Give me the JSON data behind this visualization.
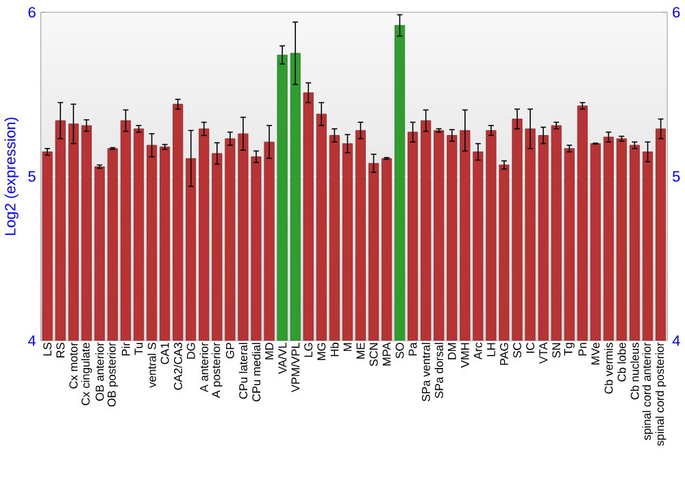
{
  "chart_data": {
    "type": "bar",
    "ylabel": "Log2 (expression)",
    "categories": [
      "LS",
      "RS",
      "Cx motor",
      "Cx cingulate",
      "OB anterior",
      "OB posterior",
      "Pir",
      "Tu",
      "ventral S",
      "CA1",
      "CA2/CA3",
      "DG",
      "A anterior",
      "A posterior",
      "GP",
      "CPu lateral",
      "CPu medial",
      "MD",
      "VA/VL",
      "VPM/VPL",
      "LG",
      "MG",
      "Hb",
      "M",
      "ME",
      "SCN",
      "MPA",
      "SO",
      "Pa",
      "SPa ventral",
      "SPa dorsal",
      "DM",
      "VMH",
      "Arc",
      "LH",
      "PAG",
      "SC",
      "IC",
      "VTA",
      "SN",
      "Tg",
      "Pn",
      "MVe",
      "Cb vermis",
      "Cb lobe",
      "Cb nucleus",
      "spinal cord anterior",
      "spinal cord posterior"
    ],
    "values": [
      5.15,
      5.34,
      5.32,
      5.31,
      5.06,
      5.17,
      5.34,
      5.29,
      5.19,
      5.18,
      5.44,
      5.11,
      5.29,
      5.14,
      5.23,
      5.26,
      5.12,
      5.21,
      5.74,
      5.75,
      5.51,
      5.38,
      5.25,
      5.2,
      5.28,
      5.08,
      5.11,
      5.92,
      5.27,
      5.34,
      5.28,
      5.25,
      5.28,
      5.15,
      5.28,
      5.07,
      5.35,
      5.29,
      5.25,
      5.31,
      5.17,
      5.43,
      5.2,
      5.24,
      5.23,
      5.19,
      5.15,
      5.29
    ],
    "errors": [
      0.02,
      0.11,
      0.12,
      0.035,
      0.01,
      0.005,
      0.065,
      0.02,
      0.07,
      0.015,
      0.03,
      0.17,
      0.04,
      0.065,
      0.04,
      0.1,
      0.035,
      0.1,
      0.055,
      0.19,
      0.06,
      0.07,
      0.04,
      0.055,
      0.05,
      0.055,
      0.005,
      0.065,
      0.06,
      0.065,
      0.01,
      0.035,
      0.125,
      0.05,
      0.03,
      0.025,
      0.06,
      0.12,
      0.05,
      0.02,
      0.02,
      0.02,
      0.003,
      0.03,
      0.015,
      0.02,
      0.06,
      0.06
    ],
    "colors": [
      "#b83434",
      "#b83434",
      "#b83434",
      "#b83434",
      "#b83434",
      "#b83434",
      "#b83434",
      "#b83434",
      "#b83434",
      "#b83434",
      "#b83434",
      "#b83434",
      "#b83434",
      "#b83434",
      "#b83434",
      "#b83434",
      "#b83434",
      "#b83434",
      "#2f9e2f",
      "#2f9e2f",
      "#b83434",
      "#b83434",
      "#b83434",
      "#b83434",
      "#b83434",
      "#b83434",
      "#b83434",
      "#2f9e2f",
      "#b83434",
      "#b83434",
      "#b83434",
      "#b83434",
      "#b83434",
      "#b83434",
      "#b83434",
      "#b83434",
      "#b83434",
      "#b83434",
      "#b83434",
      "#b83434",
      "#b83434",
      "#b83434",
      "#b83434",
      "#b83434",
      "#b83434",
      "#b83434",
      "#b83434",
      "#b83434"
    ],
    "ylim": [
      4,
      6
    ],
    "yticks": [
      4,
      5,
      6
    ],
    "y2lim": [
      4,
      6
    ],
    "y2ticks": [
      4,
      5,
      6
    ],
    "grid": "y"
  }
}
